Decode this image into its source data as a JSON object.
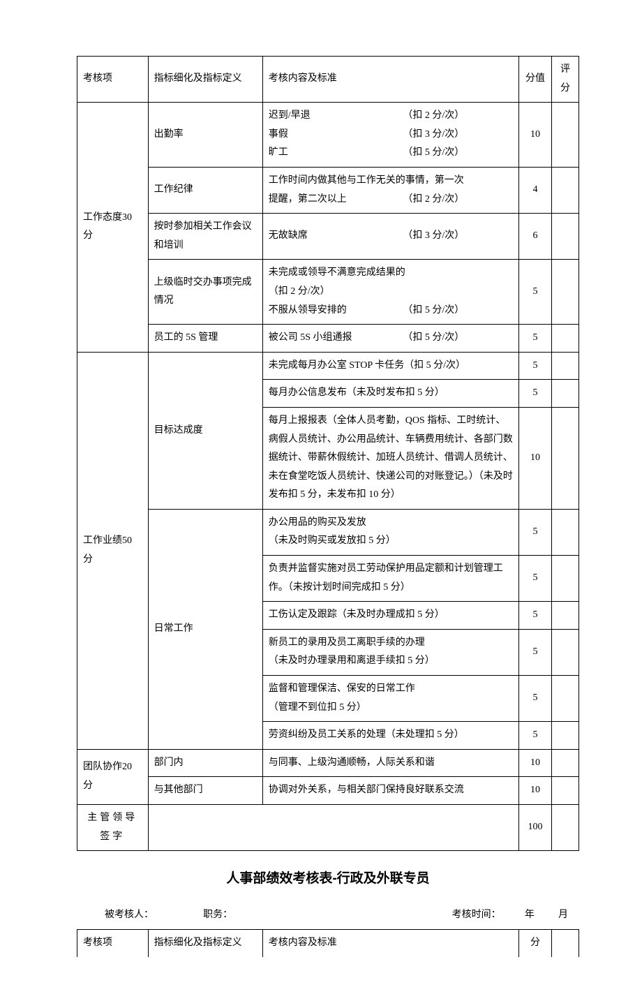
{
  "main_table": {
    "header": {
      "category": "考核项",
      "indicator": "指标细化及指标定义",
      "content": "考核内容及标准",
      "score": "分值",
      "rating": "评分"
    },
    "sections": [
      {
        "category": "工作态度30 分",
        "rows": [
          {
            "indicator": "出勤率",
            "content_lines": [
              {
                "left": "迟到/早退",
                "right": "（扣 2 分/次）"
              },
              {
                "left": "事假",
                "right": "（扣 3 分/次）"
              },
              {
                "left": "旷工",
                "right": "（扣 5 分/次）"
              }
            ],
            "score": "10"
          },
          {
            "indicator": "工作纪律",
            "content_lines": [
              {
                "left": "工作时间内做其他与工作无关的事情，第一次",
                "right": ""
              },
              {
                "left": "提醒，第二次以上",
                "right": "（扣 2 分/次）"
              }
            ],
            "score": "4"
          },
          {
            "indicator": "按时参加相关工作会议和培训",
            "content_lines": [
              {
                "left": "无故缺席",
                "right": "（扣 3 分/次）"
              }
            ],
            "score": "6"
          },
          {
            "indicator": "上级临时交办事项完成情况",
            "content_lines": [
              {
                "left": "未完成或领导不满意完成结果的",
                "right": ""
              },
              {
                "left": "（扣 2 分/次）",
                "right": ""
              },
              {
                "left": "不服从领导安排的",
                "right": "（扣 5 分/次）"
              }
            ],
            "score": "5"
          },
          {
            "indicator": "员工的 5S 管理",
            "content_lines": [
              {
                "left": "被公司 5S 小组通报",
                "right": "（扣 5 分/次）"
              }
            ],
            "score": "5"
          }
        ]
      },
      {
        "category": "工作业绩50 分",
        "indicator_groups": [
          {
            "indicator": "目标达成度",
            "rows": [
              {
                "content": "未完成每月办公室 STOP 卡任务（扣 5 分/次）",
                "score": "5"
              },
              {
                "content": "每月办公信息发布（未及时发布扣 5 分）",
                "score": "5"
              },
              {
                "content": "每月上报报表（全体人员考勤，QOS 指标、工时统计、病假人员统计、办公用品统计、车辆费用统计、各部门数据统计、带薪休假统计、加班人员统计、借调人员统计、未在食堂吃饭人员统计、快递公司的对账登记。）（未及时发布扣 5 分，未发布扣 10 分）",
                "score": "10"
              }
            ]
          },
          {
            "indicator": "日常工作",
            "rows": [
              {
                "content": "办公用品的购买及发放\n（未及时购买或发放扣 5 分）",
                "score": "5"
              },
              {
                "content": "负责并监督实施对员工劳动保护用品定额和计划管理工作。（未按计划时间完成扣 5 分）",
                "score": "5"
              },
              {
                "content": "工伤认定及跟踪（未及时办理成扣 5 分）",
                "score": "5"
              },
              {
                "content": "新员工的录用及员工离职手续的办理\n（未及时办理录用和离退手续扣 5 分）",
                "score": "5"
              },
              {
                "content": "监督和管理保洁、保安的日常工作\n（管理不到位扣 5 分）",
                "score": "5"
              },
              {
                "content": "劳资纠纷及员工关系的处理（未处理扣 5 分）",
                "score": "5"
              }
            ]
          }
        ]
      },
      {
        "category": "团队协作20 分",
        "rows_simple": [
          {
            "indicator": "部门内",
            "content": "与同事、上级沟通顺畅，人际关系和谐",
            "score": "10"
          },
          {
            "indicator": "与其他部门",
            "content": "协调对外关系，与相关部门保持良好联系交流",
            "score": "10"
          }
        ]
      }
    ],
    "footer": {
      "label": "主管领导签字",
      "score": "100"
    }
  },
  "title2": "人事部绩效考核表-行政及外联专员",
  "info": {
    "person": "被考核人：",
    "position": "职务：",
    "time_label": "考核时间：",
    "year": "年",
    "month": "月"
  },
  "table2_header": {
    "category": "考核项",
    "indicator": "指标细化及指标定义",
    "content": "考核内容及标准",
    "score": "分"
  }
}
